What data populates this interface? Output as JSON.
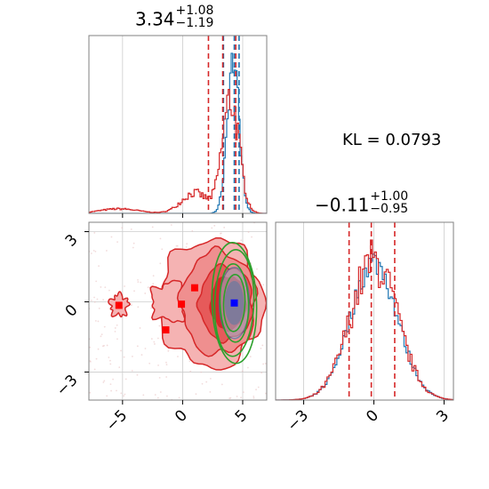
{
  "colors": {
    "red": "#d62728",
    "blue": "#1f77b4",
    "green": "#2ca02c",
    "fill_red": "#f08080",
    "marker_red": "#ff0000",
    "marker_blue": "#0000ff",
    "grid": "#cccccc"
  },
  "kl_label": "KL = 0.0793",
  "chart_data": [
    {
      "type": "histogram",
      "panel": "marginal-param-1",
      "title": {
        "value": "3.34",
        "upper": "+1.08",
        "lower": "−1.19"
      },
      "xlim": [
        -7.8,
        7.0
      ],
      "grid": true,
      "series": [
        {
          "name": "",
          "color": "#d62728",
          "peak_x": 4.0,
          "quantile_lines": [
            2.15,
            3.34,
            4.42
          ]
        },
        {
          "name": "",
          "color": "#1f77b4",
          "peak_x": 4.2,
          "quantile_lines": [
            3.4,
            4.3,
            4.7
          ]
        }
      ]
    },
    {
      "type": "histogram",
      "panel": "marginal-param-2",
      "title": {
        "value": "−0.11",
        "upper": "+1.00",
        "lower": "−0.95"
      },
      "xlim": [
        -4.2,
        3.4
      ],
      "xticks": [
        "−3",
        "0",
        "3"
      ],
      "xtick_values": [
        -3,
        0,
        3
      ],
      "grid": true,
      "series": [
        {
          "name": "",
          "color": "#d62728",
          "peak_x": 0.0,
          "quantile_lines": [
            -1.06,
            -0.11,
            0.89
          ]
        },
        {
          "name": "",
          "color": "#1f77b4",
          "peak_x": 0.0
        }
      ]
    },
    {
      "type": "contour",
      "panel": "joint-param1-param2",
      "xlim": [
        -7.8,
        7.0
      ],
      "ylim": [
        -4.2,
        3.4
      ],
      "xticks": [
        "−5",
        "0",
        "5"
      ],
      "xtick_values": [
        -5,
        0,
        5
      ],
      "yticks": [
        "−3",
        "0",
        "3"
      ],
      "ytick_values": [
        -3,
        0,
        3
      ],
      "grid": true,
      "red_center": [
        3.34,
        -0.11
      ],
      "green_center": [
        4.3,
        -0.05
      ],
      "red_markers": [
        [
          -5.3,
          -0.15
        ],
        [
          -0.1,
          -0.1
        ],
        [
          1.0,
          0.6
        ],
        [
          -1.4,
          -1.2
        ]
      ],
      "blue_marker": [
        4.3,
        -0.05
      ]
    }
  ]
}
